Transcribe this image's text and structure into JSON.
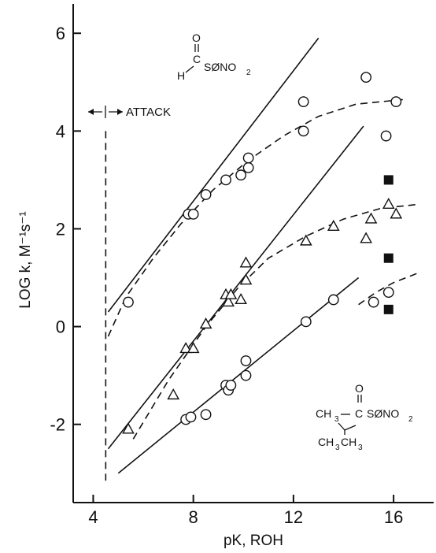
{
  "chart_data": {
    "type": "scatter",
    "title": "",
    "xlabel": "pK, ROH",
    "ylabel": "LOG k, M⁻¹s⁻¹",
    "xlim": [
      3.2,
      17.6
    ],
    "ylim": [
      -3.6,
      6.6
    ],
    "x_ticks": [
      4,
      8,
      12,
      16
    ],
    "y_ticks": [
      6,
      4,
      2,
      0,
      -2
    ],
    "x_tick_labels": [
      "4",
      "8",
      "12",
      "16"
    ],
    "y_tick_labels": [
      "6",
      "4",
      "2",
      "0",
      "-2"
    ],
    "grid": false,
    "legend": "none",
    "series": [
      {
        "marker": "circle",
        "points": [
          [
            5.4,
            0.5
          ],
          [
            7.8,
            2.3
          ],
          [
            8.0,
            2.3
          ],
          [
            8.5,
            2.7
          ],
          [
            9.3,
            3.0
          ],
          [
            9.9,
            3.1
          ],
          [
            10.2,
            3.25
          ],
          [
            10.2,
            3.45
          ],
          [
            12.4,
            4.6
          ],
          [
            12.4,
            4.0
          ],
          [
            14.9,
            5.1
          ],
          [
            15.7,
            3.9
          ],
          [
            16.1,
            4.6
          ]
        ]
      },
      {
        "marker": "triangle",
        "points": [
          [
            5.4,
            -2.1
          ],
          [
            7.2,
            -1.4
          ],
          [
            7.7,
            -0.45
          ],
          [
            8.0,
            -0.45
          ],
          [
            8.5,
            0.05
          ],
          [
            9.3,
            0.65
          ],
          [
            9.4,
            0.5
          ],
          [
            9.5,
            0.65
          ],
          [
            9.9,
            0.55
          ],
          [
            10.1,
            1.3
          ],
          [
            10.1,
            0.95
          ],
          [
            12.5,
            1.75
          ],
          [
            13.6,
            2.05
          ],
          [
            14.9,
            1.8
          ],
          [
            15.1,
            2.2
          ],
          [
            15.8,
            2.5
          ],
          [
            16.1,
            2.3
          ]
        ]
      },
      {
        "marker": "circle",
        "points": [
          [
            7.7,
            -1.9
          ],
          [
            7.9,
            -1.85
          ],
          [
            8.5,
            -1.8
          ],
          [
            9.3,
            -1.2
          ],
          [
            9.4,
            -1.3
          ],
          [
            9.5,
            -1.2
          ],
          [
            10.1,
            -0.7
          ],
          [
            10.1,
            -1.0
          ],
          [
            12.5,
            0.1
          ],
          [
            13.6,
            0.55
          ],
          [
            15.2,
            0.5
          ],
          [
            15.8,
            0.7
          ]
        ]
      },
      {
        "marker": "square-filled",
        "points": [
          [
            15.8,
            3.0
          ],
          [
            15.8,
            1.4
          ],
          [
            15.8,
            0.35
          ]
        ]
      }
    ],
    "fit_lines": [
      {
        "style": "solid",
        "points": [
          [
            4.6,
            0.3
          ],
          [
            13.0,
            5.9
          ]
        ]
      },
      {
        "style": "solid",
        "points": [
          [
            4.6,
            -2.5
          ],
          [
            14.8,
            4.1
          ]
        ]
      },
      {
        "style": "solid",
        "points": [
          [
            5.0,
            -3.0
          ],
          [
            14.6,
            1.0
          ]
        ]
      },
      {
        "style": "dashed",
        "points": [
          [
            4.6,
            -0.2
          ],
          [
            5.3,
            0.6
          ],
          [
            6.4,
            1.4
          ],
          [
            7.5,
            2.1
          ],
          [
            8.8,
            2.8
          ],
          [
            10.2,
            3.4
          ],
          [
            11.6,
            3.9
          ],
          [
            13.0,
            4.3
          ],
          [
            14.5,
            4.55
          ],
          [
            16.5,
            4.65
          ]
        ]
      },
      {
        "style": "dashed",
        "points": [
          [
            5.6,
            -2.3
          ],
          [
            7.0,
            -1.1
          ],
          [
            8.5,
            0.0
          ],
          [
            9.8,
            0.8
          ],
          [
            11.0,
            1.4
          ],
          [
            12.5,
            1.85
          ],
          [
            14.0,
            2.2
          ],
          [
            15.5,
            2.42
          ],
          [
            17.0,
            2.5
          ]
        ]
      },
      {
        "style": "dashed",
        "points": [
          [
            14.6,
            0.45
          ],
          [
            15.3,
            0.7
          ],
          [
            16.0,
            0.9
          ],
          [
            17.0,
            1.1
          ]
        ]
      }
    ],
    "vertical_marker": {
      "x": 4.5,
      "y_from": -3.15,
      "y_to": 4.0
    }
  },
  "annotations": {
    "attack": "ATTACK",
    "top_formula": {
      "o": "O",
      "h": "H",
      "c": "C",
      "rest": "SØNO",
      "sub": "2"
    },
    "bottom_formula": {
      "o": "O",
      "ch3": "CH",
      "sub3": "3",
      "c": "C",
      "rest": "SØNO",
      "sub2": "2",
      "ch3ch3_a": "CH",
      "ch3ch3_b": "CH",
      "sub3b": "3",
      "sub3c": "3"
    }
  }
}
